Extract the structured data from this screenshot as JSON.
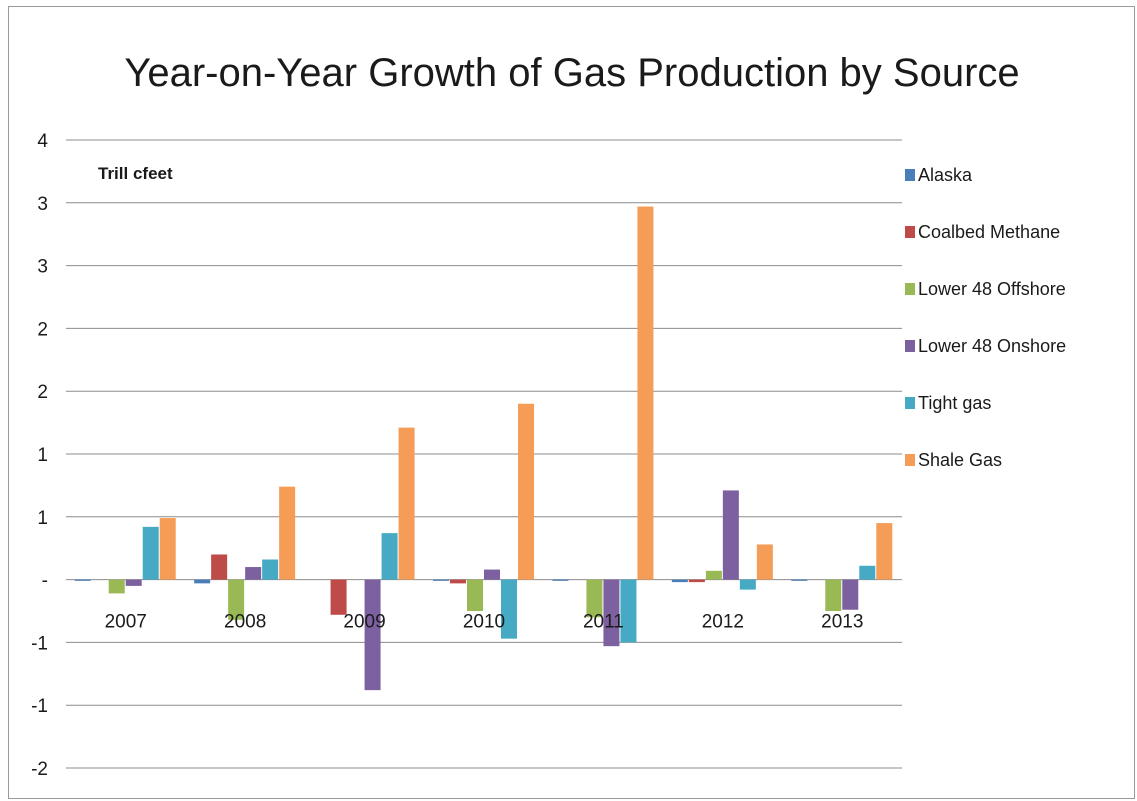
{
  "chart_data": {
    "type": "bar",
    "title": "Year-on-Year Growth of Gas Production by Source",
    "unit_label": "Trill cfeet",
    "categories": [
      "2007",
      "2008",
      "2009",
      "2010",
      "2011",
      "2012",
      "2013"
    ],
    "ylim": [
      -1.5,
      3.5
    ],
    "y_ticks": [
      -1.5,
      -1.0,
      -0.5,
      0,
      0.5,
      1.0,
      1.5,
      2.0,
      2.5,
      3.0,
      3.5
    ],
    "y_tick_labels": [
      "-2",
      "-1",
      "-1",
      "-",
      "1",
      "1",
      "2",
      "2",
      "3",
      "3",
      "4"
    ],
    "grid": true,
    "legend_position": "right",
    "series": [
      {
        "name": "Alaska",
        "color": "#4a7ebb",
        "values": [
          -0.01,
          -0.03,
          0.0,
          -0.01,
          -0.01,
          -0.02,
          -0.01
        ]
      },
      {
        "name": "Coalbed Methane",
        "color": "#be4b48",
        "values": [
          0.0,
          0.2,
          -0.28,
          -0.03,
          0.0,
          -0.02,
          0.0
        ]
      },
      {
        "name": "Lower 48 Offshore",
        "color": "#98b954",
        "values": [
          -0.11,
          -0.32,
          0.0,
          -0.25,
          -0.3,
          0.07,
          -0.25
        ]
      },
      {
        "name": "Lower 48 Onshore",
        "color": "#7d60a0",
        "values": [
          -0.05,
          0.1,
          -0.88,
          0.08,
          -0.53,
          0.71,
          -0.24
        ]
      },
      {
        "name": "Tight gas",
        "color": "#46aac5",
        "values": [
          0.42,
          0.16,
          0.37,
          -0.47,
          -0.5,
          -0.08,
          0.11
        ]
      },
      {
        "name": "Shale Gas",
        "color": "#f59d56",
        "values": [
          0.49,
          0.74,
          1.21,
          1.4,
          2.97,
          0.28,
          0.45
        ]
      }
    ]
  }
}
